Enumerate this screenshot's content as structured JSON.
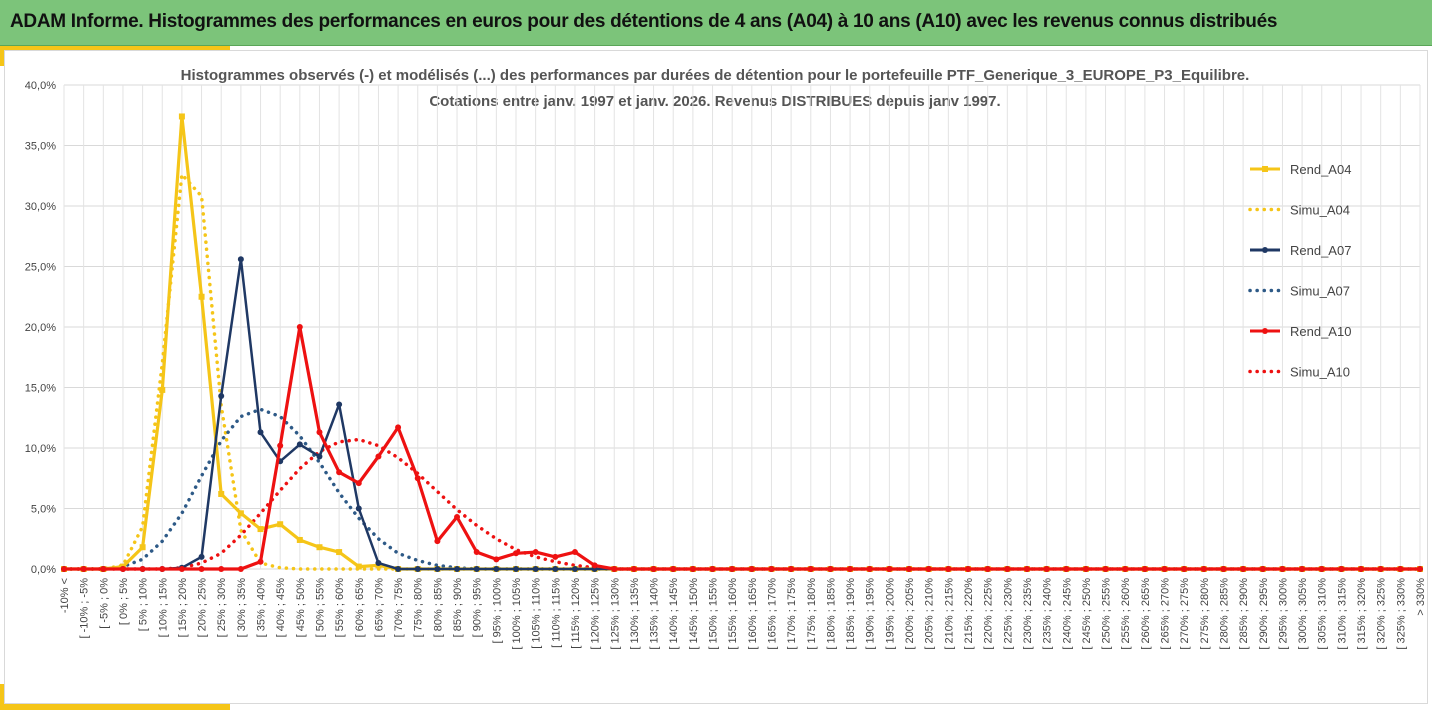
{
  "header": {
    "title": "ADAM Informe. Histogrammes des performances en euros pour des détentions de 4 ans (A04) à 10 ans (A10) avec les revenus connus distribués"
  },
  "chart_data": {
    "type": "line",
    "title_lines": [
      "Histogrammes observés (-) et modélisés (...) des performances par durées de détention pour  le portefeuille PTF_Generique_3_EUROPE_P3_Equilibre.",
      "Cotations  entre  janv. 1997 et janv. 2026. Revenus DISTRIBUES depuis janv 1997."
    ],
    "ylim": [
      0,
      40
    ],
    "yticks": [
      "0,0%",
      "5,0%",
      "10,0%",
      "15,0%",
      "20,0%",
      "25,0%",
      "30,0%",
      "35,0%",
      "40,0%"
    ],
    "grid": true,
    "legend_position": "right",
    "categories": [
      "-10% <",
      "[ -10% ; -5%",
      "[ -5% ; 0%",
      "[ 0% ; 5%",
      "[ 5% ; 10%",
      "[ 10% ; 15%",
      "[ 15% ; 20%",
      "[ 20% ; 25%",
      "[ 25% ; 30%",
      "[ 30% ; 35%",
      "[ 35% ; 40%",
      "[ 40% ; 45%",
      "[ 45% ; 50%",
      "[ 50% ; 55%",
      "[ 55% ; 60%",
      "[ 60% ; 65%",
      "[ 65% ; 70%",
      "[ 70% ; 75%",
      "[ 75% ; 80%",
      "[ 80% ; 85%",
      "[ 85% ; 90%",
      "[ 90% ; 95%",
      "[ 95% ; 100%",
      "[ 100% ; 105%",
      "[ 105% ; 110%",
      "[ 110% ; 115%",
      "[ 115% ; 120%",
      "[ 120% ; 125%",
      "[ 125% ; 130%",
      "[ 130% ; 135%",
      "[ 135% ; 140%",
      "[ 140% ; 145%",
      "[ 145% ; 150%",
      "[ 150% ; 155%",
      "[ 155% ; 160%",
      "[ 160% ; 165%",
      "[ 165% ; 170%",
      "[ 170% ; 175%",
      "[ 175% ; 180%",
      "[ 180% ; 185%",
      "[ 185% ; 190%",
      "[ 190% ; 195%",
      "[ 195% ; 200%",
      "[ 200% ; 205%",
      "[ 205% ; 210%",
      "[ 210% ; 215%",
      "[ 215% ; 220%",
      "[ 220% ; 225%",
      "[ 225% ; 230%",
      "[ 230% ; 235%",
      "[ 235% ; 240%",
      "[ 240% ; 245%",
      "[ 245% ; 250%",
      "[ 250% ; 255%",
      "[ 255% ; 260%",
      "[ 260% ; 265%",
      "[ 265% ; 270%",
      "[ 270% ; 275%",
      "[ 275% ; 280%",
      "[ 280% ; 285%",
      "[ 285% ; 290%",
      "[ 290% ; 295%",
      "[ 295% ; 300%",
      "[ 300% ; 305%",
      "[ 305% ; 310%",
      "[ 310% ; 315%",
      "[ 315% ; 320%",
      "[ 320% ; 325%",
      "[ 325% ; 330%",
      "> 330%"
    ],
    "series": [
      {
        "name": "Rend_A04",
        "style": "solid",
        "marker": "square",
        "color": "#f5c518",
        "values": [
          0,
          0,
          0,
          0.2,
          1.8,
          14.8,
          37.4,
          22.5,
          6.2,
          4.6,
          3.3,
          3.7,
          2.4,
          1.8,
          1.4,
          0.2,
          0.3,
          0,
          0,
          0,
          0,
          0,
          0,
          0,
          0,
          0,
          0,
          0,
          0,
          0,
          0,
          0,
          0,
          0,
          0,
          0,
          0,
          0,
          0,
          0,
          0,
          0,
          0,
          0,
          0,
          0,
          0,
          0,
          0,
          0,
          0,
          0,
          0,
          0,
          0,
          0,
          0,
          0,
          0,
          0,
          0,
          0,
          0,
          0,
          0,
          0,
          0,
          0,
          0,
          0
        ]
      },
      {
        "name": "Simu_A04",
        "style": "dotted",
        "marker": "none",
        "color": "#f5c518",
        "values": [
          0,
          0,
          0,
          0.3,
          3.5,
          17,
          32.6,
          30.8,
          13.5,
          3.2,
          0.5,
          0.1,
          0,
          0,
          0,
          0,
          0,
          0,
          0,
          0,
          0,
          0,
          0,
          0,
          0,
          0,
          0,
          0,
          0,
          0,
          0,
          0,
          0,
          0,
          0,
          0,
          0,
          0,
          0,
          0,
          0,
          0,
          0,
          0,
          0,
          0,
          0,
          0,
          0,
          0,
          0,
          0,
          0,
          0,
          0,
          0,
          0,
          0,
          0,
          0,
          0,
          0,
          0,
          0,
          0,
          0,
          0,
          0,
          0,
          0
        ]
      },
      {
        "name": "Rend_A07",
        "style": "solid",
        "marker": "circle",
        "color": "#1f3864",
        "values": [
          0,
          0,
          0,
          0,
          0,
          0,
          0.1,
          1,
          14.3,
          25.6,
          11.3,
          8.9,
          10.3,
          9.3,
          13.6,
          5,
          0.5,
          0,
          0,
          0,
          0,
          0,
          0,
          0,
          0,
          0,
          0,
          0,
          0,
          0,
          0,
          0,
          0,
          0,
          0,
          0,
          0,
          0,
          0,
          0,
          0,
          0,
          0,
          0,
          0,
          0,
          0,
          0,
          0,
          0,
          0,
          0,
          0,
          0,
          0,
          0,
          0,
          0,
          0,
          0,
          0,
          0,
          0,
          0,
          0,
          0,
          0,
          0,
          0,
          0
        ]
      },
      {
        "name": "Simu_A07",
        "style": "dotted",
        "marker": "none",
        "color": "#2e5a87",
        "values": [
          0,
          0,
          0,
          0.2,
          0.8,
          2.3,
          4.6,
          7.7,
          10.6,
          12.6,
          13.2,
          12.6,
          11,
          8.8,
          6.3,
          4.2,
          2.5,
          1.3,
          0.7,
          0.3,
          0.1,
          0,
          0,
          0,
          0,
          0,
          0,
          0,
          0,
          0,
          0,
          0,
          0,
          0,
          0,
          0,
          0,
          0,
          0,
          0,
          0,
          0,
          0,
          0,
          0,
          0,
          0,
          0,
          0,
          0,
          0,
          0,
          0,
          0,
          0,
          0,
          0,
          0,
          0,
          0,
          0,
          0,
          0,
          0,
          0,
          0,
          0,
          0,
          0,
          0
        ]
      },
      {
        "name": "Rend_A10",
        "style": "solid",
        "marker": "circle",
        "color": "#ee1111",
        "values": [
          0,
          0,
          0,
          0,
          0,
          0,
          0,
          0,
          0,
          0,
          0.6,
          10.2,
          20,
          11.3,
          8,
          7.1,
          9.3,
          11.7,
          7.5,
          2.3,
          4.3,
          1.4,
          0.8,
          1.3,
          1.4,
          1,
          1.4,
          0.3,
          0,
          0,
          0,
          0,
          0,
          0,
          0,
          0,
          0,
          0,
          0,
          0,
          0,
          0,
          0,
          0,
          0,
          0,
          0,
          0,
          0,
          0,
          0,
          0,
          0,
          0,
          0,
          0,
          0,
          0,
          0,
          0,
          0,
          0,
          0,
          0,
          0,
          0,
          0,
          0,
          0,
          0
        ]
      },
      {
        "name": "Simu_A10",
        "style": "dotted",
        "marker": "none",
        "color": "#ee1111",
        "values": [
          0,
          0,
          0,
          0,
          0,
          0,
          0.1,
          0.5,
          1.3,
          2.8,
          4.6,
          6.5,
          8.3,
          9.7,
          10.5,
          10.7,
          10.2,
          9.2,
          7.9,
          6.4,
          4.9,
          3.6,
          2.5,
          1.6,
          1,
          0.6,
          0.3,
          0.1,
          0,
          0,
          0,
          0,
          0,
          0,
          0,
          0,
          0,
          0,
          0,
          0,
          0,
          0,
          0,
          0,
          0,
          0,
          0,
          0,
          0,
          0,
          0,
          0,
          0,
          0,
          0,
          0,
          0,
          0,
          0,
          0,
          0,
          0,
          0,
          0,
          0,
          0,
          0,
          0,
          0,
          0
        ]
      }
    ]
  }
}
